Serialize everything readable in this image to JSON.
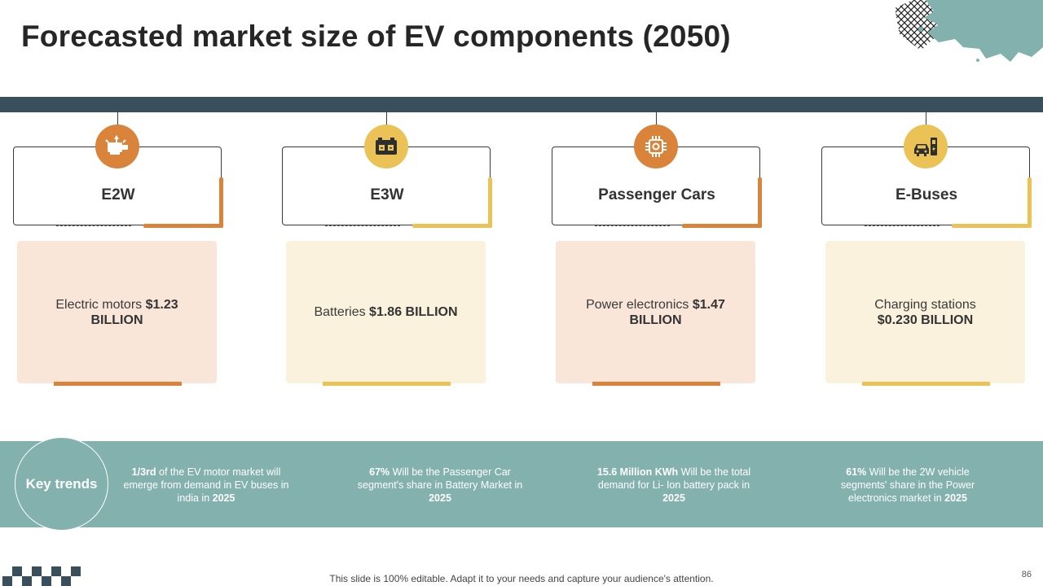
{
  "title": "Forecasted market size of EV components (2050)",
  "colors": {
    "orange": "#d9843a",
    "yellow": "#ebc256",
    "teal": "#82b1ae",
    "navy": "#394f5c",
    "peach_bg": "#fae6d9",
    "cream_bg": "#fbf2dd"
  },
  "columns": [
    {
      "label": "E2W",
      "icon": "motor-icon",
      "accent": "orange",
      "card_prefix": "Electric motors ",
      "card_value": "$1.23 BILLION"
    },
    {
      "label": "E3W",
      "icon": "battery-icon",
      "accent": "yellow",
      "card_prefix": "Batteries ",
      "card_value": "$1.86 BILLION"
    },
    {
      "label": "Passenger Cars",
      "icon": "chip-icon",
      "accent": "orange",
      "card_prefix": "Power electronics ",
      "card_value": "$1.47 BILLION"
    },
    {
      "label": "E-Buses",
      "icon": "charging-station-icon",
      "accent": "yellow",
      "card_prefix": "Charging stations",
      "card_value": "$0.230 BILLION"
    }
  ],
  "key_trends": {
    "label": "Key trends",
    "items": [
      {
        "bold1": "1/3rd",
        "text1": " of the EV motor market will emerge from demand in EV buses in india in ",
        "bold2": "2025"
      },
      {
        "bold1": "67%",
        "text1": " Will be the Passenger Car segment's share in Battery Market in ",
        "bold2": "2025"
      },
      {
        "bold1": "15.6 Million KWh",
        "text1": " Will be the total demand for Li- Ion battery pack in ",
        "bold2": "2025"
      },
      {
        "bold1": "61%",
        "text1": "  Will be the 2W vehicle segments' share in the Power electronics market in ",
        "bold2": "2025"
      }
    ]
  },
  "footer": "This slide is 100% editable. Adapt it to your needs and capture your audience's attention.",
  "page_number": "86"
}
